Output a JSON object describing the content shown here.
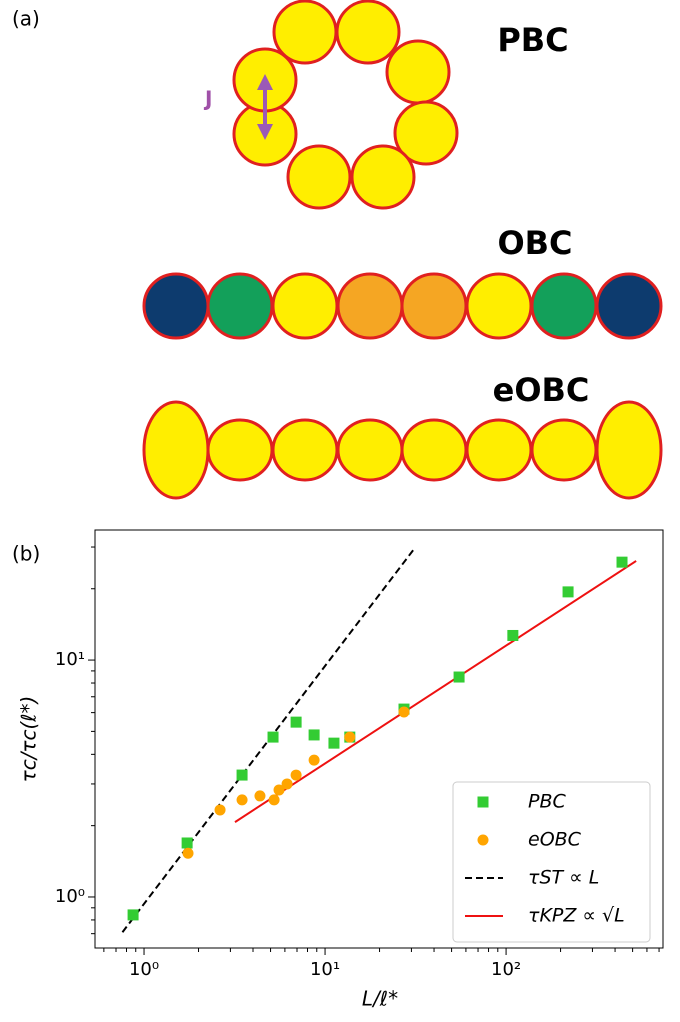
{
  "panel_a": {
    "label": "(a)",
    "coupling": "J",
    "labels": [
      "PBC",
      "OBC",
      "eOBC"
    ]
  },
  "chart_data": {
    "type": "scatter",
    "panel_label": "(b)",
    "x_label": "L/ℓ*",
    "y_label": "τc/τc(ℓ*)",
    "log_x": true,
    "log_y": true,
    "legend": "lower right",
    "xlim": [
      0.536,
      736
    ],
    "ylim": [
      0.609,
      35.4
    ],
    "xticks": [
      {
        "value": 1,
        "label": "10⁰"
      },
      {
        "value": 10,
        "label": "10¹"
      },
      {
        "value": 100,
        "label": "10²"
      }
    ],
    "yticks": [
      {
        "value": 1,
        "label": "10⁰"
      },
      {
        "value": 10,
        "label": "10¹"
      }
    ],
    "xminorticks": [
      0.6,
      0.7,
      0.8,
      0.9,
      2,
      3,
      4,
      5,
      6,
      7,
      8,
      9,
      20,
      30,
      40,
      50,
      60,
      70,
      80,
      90,
      200,
      300,
      400,
      500,
      600,
      700
    ],
    "yminorticks": [
      0.7,
      0.8,
      0.9,
      2,
      3,
      4,
      5,
      6,
      7,
      8,
      9,
      20,
      30
    ],
    "series": [
      {
        "name": "PBC",
        "style": "square",
        "color": "#33cc33",
        "x": [
          0.87,
          1.73,
          3.48,
          5.16,
          6.92,
          8.7,
          11.2,
          13.7,
          27.3,
          55,
          109,
          220,
          437
        ],
        "values": [
          0.84,
          1.69,
          3.27,
          4.73,
          5.47,
          4.83,
          4.46,
          4.73,
          6.21,
          8.48,
          12.7,
          19.4,
          25.9
        ]
      },
      {
        "name": "eOBC",
        "style": "circle",
        "color": "#ffa500",
        "x": [
          1.75,
          2.63,
          3.48,
          4.37,
          5.23,
          5.57,
          6.17,
          6.92,
          8.7,
          13.7,
          27.3
        ],
        "values": [
          1.53,
          2.33,
          2.57,
          2.67,
          2.57,
          2.83,
          3.0,
          3.27,
          3.78,
          4.73,
          6.04
        ]
      },
      {
        "name": "τST ∝ L",
        "style": "dashed",
        "color": "#000000",
        "x": [
          0.76,
          31.3
        ],
        "values": [
          0.71,
          29.7
        ]
      },
      {
        "name": "τKPZ ∝ √L",
        "style": "solid",
        "color": "#ee1111",
        "x": [
          3.18,
          523
        ],
        "values": [
          2.07,
          26.2
        ]
      }
    ]
  }
}
